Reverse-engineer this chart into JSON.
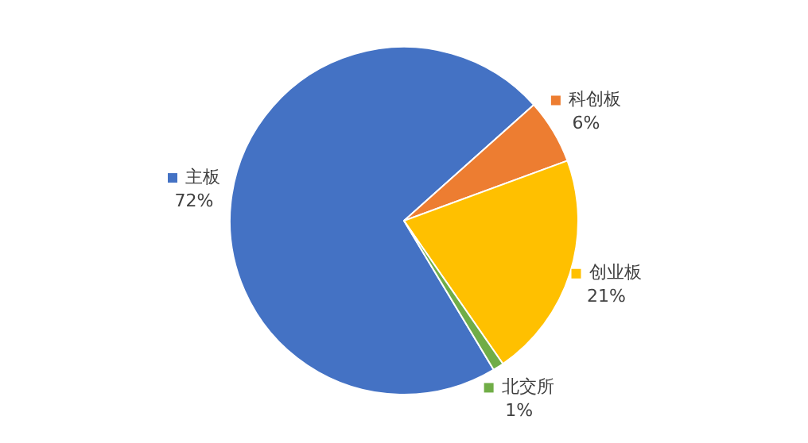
{
  "chart_data": {
    "type": "pie",
    "categories": [
      "主板",
      "科创板",
      "创业板",
      "北交所"
    ],
    "values": [
      72,
      6,
      21,
      1
    ],
    "value_labels": [
      "72%",
      "6%",
      "21%",
      "1%"
    ],
    "colors": [
      "#4472c4",
      "#ed7d31",
      "#ffc000",
      "#70ad47"
    ],
    "legend": "right"
  }
}
